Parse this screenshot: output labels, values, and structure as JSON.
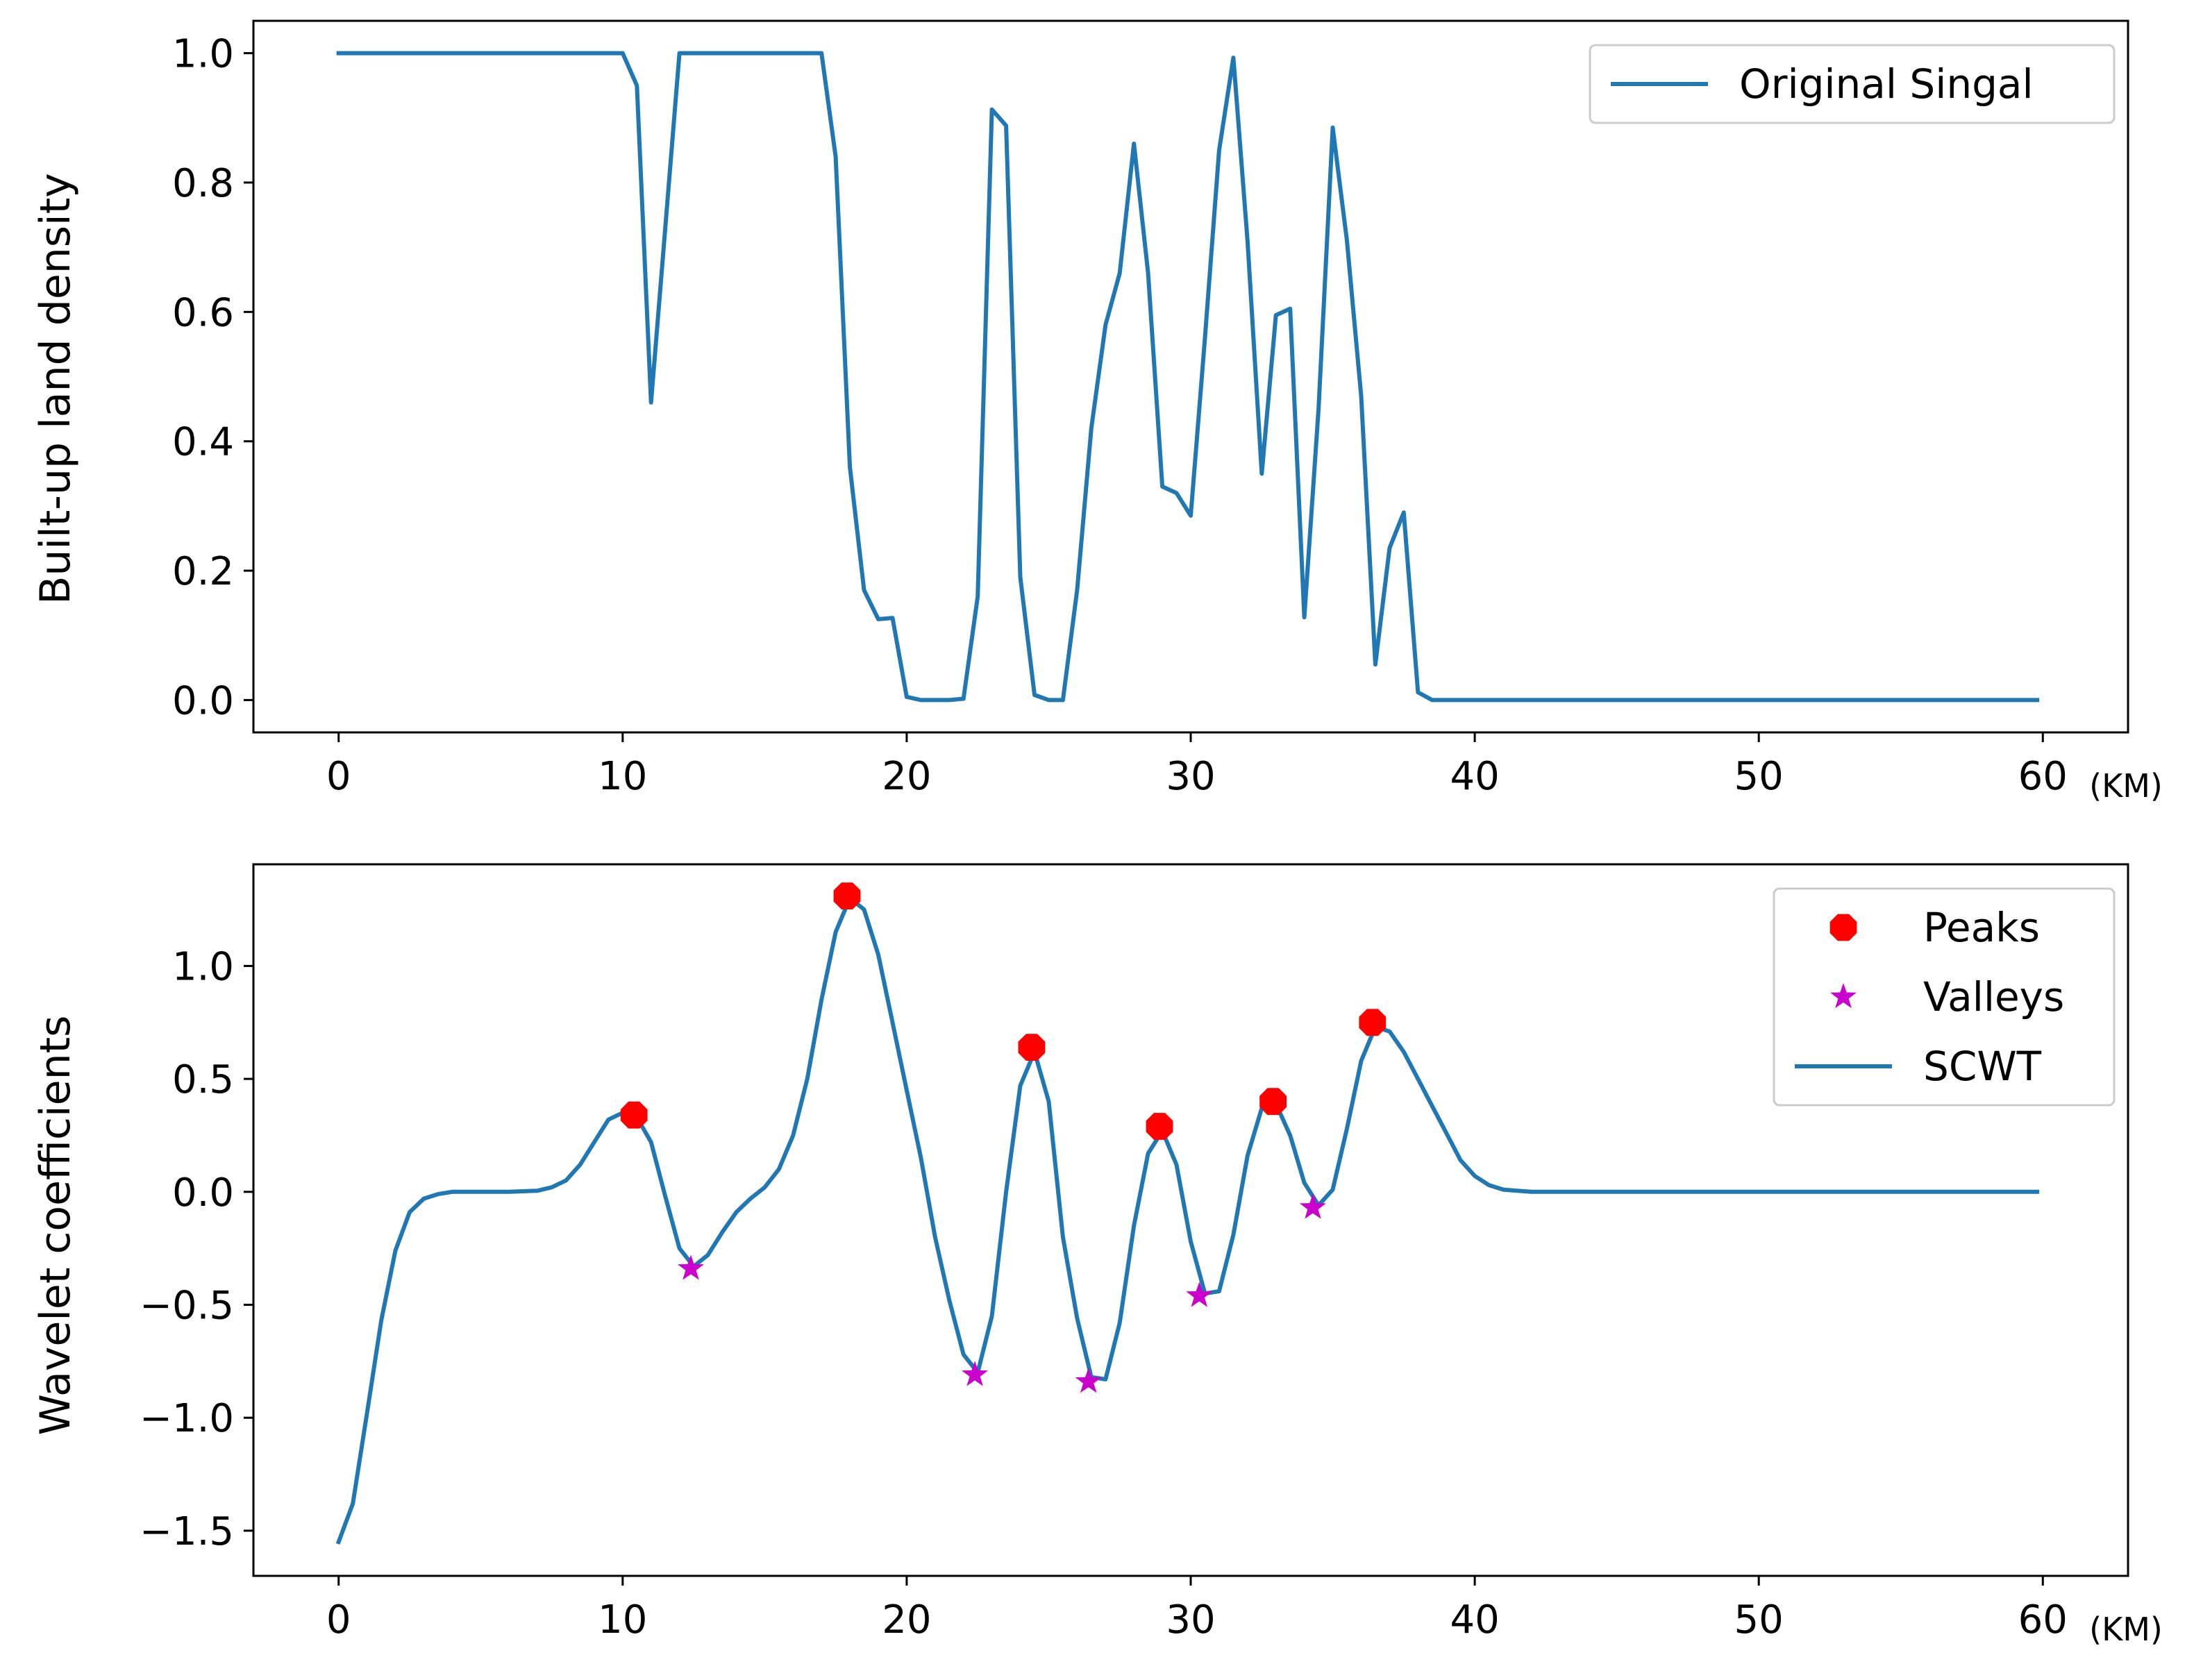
{
  "colors": {
    "signal": "#1f77b4",
    "scwt": "#1f77b4",
    "peaks": "#ff0000",
    "valleys": "#cc00cc"
  },
  "chart_data": [
    {
      "type": "line",
      "xlabel": "",
      "x_unit": "(KM)",
      "ylabel": "Built-up land density",
      "xlim": [
        -3,
        63
      ],
      "ylim": [
        -0.05,
        1.05
      ],
      "xticks": [
        0,
        10,
        20,
        30,
        40,
        50,
        60
      ],
      "yticks": [
        0.0,
        0.2,
        0.4,
        0.6,
        0.8,
        1.0
      ],
      "ytick_labels": [
        "0.0",
        "0.2",
        "0.4",
        "0.6",
        "0.8",
        "1.0"
      ],
      "legend": "top-right",
      "series": [
        {
          "name": "Original Singal",
          "x": [
            0,
            10.0,
            10.5,
            11.0,
            11.5,
            12.0,
            12.5,
            17.0,
            17.5,
            18.0,
            18.5,
            19.0,
            19.5,
            20.0,
            20.5,
            21.5,
            22.0,
            22.5,
            23.0,
            23.5,
            24.0,
            24.5,
            25.0,
            25.5,
            26.0,
            26.5,
            27.0,
            27.5,
            28.0,
            28.5,
            29.0,
            29.5,
            30.0,
            30.5,
            31.0,
            31.5,
            32.0,
            32.5,
            33.0,
            33.5,
            34.0,
            34.5,
            35.0,
            35.5,
            36.0,
            36.5,
            37.0,
            37.5,
            38.0,
            38.5,
            59.8
          ],
          "y": [
            1.0,
            1.0,
            0.95,
            0.46,
            0.73,
            1.0,
            1.0,
            1.0,
            0.84,
            0.36,
            0.17,
            0.125,
            0.127,
            0.005,
            0.0,
            0.0,
            0.002,
            0.16,
            0.913,
            0.888,
            0.19,
            0.008,
            0.0,
            0.0,
            0.17,
            0.42,
            0.58,
            0.66,
            0.86,
            0.66,
            0.33,
            0.32,
            0.285,
            0.56,
            0.85,
            0.993,
            0.71,
            0.35,
            0.595,
            0.605,
            0.128,
            0.45,
            0.885,
            0.71,
            0.47,
            0.055,
            0.235,
            0.29,
            0.012,
            0.0,
            0.0
          ]
        }
      ]
    },
    {
      "type": "line",
      "xlabel": "",
      "x_unit": "(KM)",
      "ylabel": "Wavelet coefficients",
      "xlim": [
        -3,
        63
      ],
      "ylim": [
        -1.7,
        1.45
      ],
      "xticks": [
        0,
        10,
        20,
        30,
        40,
        50,
        60
      ],
      "yticks": [
        -1.5,
        -1.0,
        -0.5,
        0.0,
        0.5,
        1.0
      ],
      "ytick_labels": [
        "−1.5",
        "−1.0",
        "−0.5",
        "0.0",
        "0.5",
        "1.0"
      ],
      "legend": "top-right",
      "series": [
        {
          "name": "SCWT",
          "x": [
            0,
            0.5,
            1.0,
            1.5,
            2.0,
            2.5,
            3.0,
            3.5,
            4.0,
            5.0,
            6.0,
            7.0,
            7.5,
            8.0,
            8.5,
            9.0,
            9.5,
            10.0,
            10.5,
            11.0,
            11.5,
            12.0,
            12.5,
            13.0,
            13.5,
            14.0,
            14.5,
            15.0,
            15.5,
            16.0,
            16.5,
            17.0,
            17.5,
            18.0,
            18.5,
            19.0,
            19.5,
            20.0,
            20.5,
            21.0,
            21.5,
            22.0,
            22.5,
            23.0,
            23.5,
            24.0,
            24.5,
            25.0,
            25.5,
            26.0,
            26.5,
            27.0,
            27.5,
            28.0,
            28.5,
            29.0,
            29.5,
            30.0,
            30.5,
            31.0,
            31.5,
            32.0,
            32.5,
            33.0,
            33.5,
            34.0,
            34.5,
            35.0,
            35.5,
            36.0,
            36.5,
            37.0,
            37.5,
            38.0,
            38.5,
            39.0,
            39.5,
            40.0,
            40.5,
            41.0,
            41.5,
            42.0,
            43.0,
            50.0,
            59.8
          ],
          "y": [
            -1.55,
            -1.38,
            -0.98,
            -0.57,
            -0.26,
            -0.09,
            -0.03,
            -0.01,
            0.0,
            0.0,
            0.0,
            0.005,
            0.02,
            0.05,
            0.12,
            0.22,
            0.32,
            0.35,
            0.33,
            0.22,
            -0.02,
            -0.25,
            -0.33,
            -0.28,
            -0.18,
            -0.09,
            -0.03,
            0.02,
            0.1,
            0.25,
            0.5,
            0.85,
            1.15,
            1.3,
            1.25,
            1.05,
            0.75,
            0.45,
            0.15,
            -0.2,
            -0.48,
            -0.72,
            -0.8,
            -0.55,
            0.0,
            0.47,
            0.62,
            0.4,
            -0.2,
            -0.56,
            -0.82,
            -0.83,
            -0.58,
            -0.15,
            0.17,
            0.27,
            0.12,
            -0.22,
            -0.45,
            -0.44,
            -0.19,
            0.16,
            0.37,
            0.39,
            0.25,
            0.04,
            -0.06,
            0.01,
            0.28,
            0.58,
            0.73,
            0.71,
            0.62,
            0.5,
            0.38,
            0.26,
            0.14,
            0.07,
            0.03,
            0.01,
            0.005,
            0.0,
            0.0,
            0.0,
            0.0
          ]
        },
        {
          "name": "Peaks",
          "marker": "octagon",
          "x": [
            10.4,
            17.9,
            24.4,
            28.9,
            32.9,
            36.4
          ],
          "y": [
            0.34,
            1.31,
            0.64,
            0.29,
            0.4,
            0.75
          ]
        },
        {
          "name": "Valleys",
          "marker": "star",
          "x": [
            12.4,
            22.4,
            26.4,
            30.3,
            34.3
          ],
          "y": [
            -0.34,
            -0.81,
            -0.84,
            -0.46,
            -0.07
          ]
        }
      ]
    }
  ]
}
